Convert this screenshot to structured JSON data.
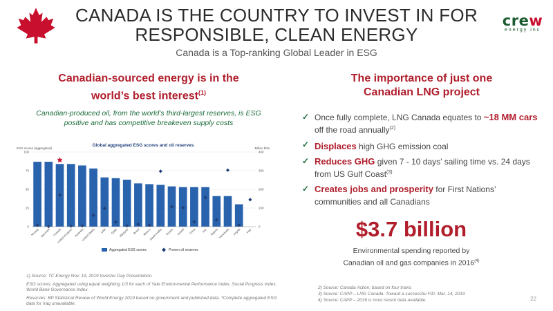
{
  "title_line1": "CANADA IS THE COUNTRY TO INVEST IN FOR",
  "title_line2": "RESPONSIBLE, CLEAN ENERGY",
  "subtitle": "Canada is a Top-ranking Global Leader in ESG",
  "logo": {
    "main_prefix": "cre",
    "main_w": "w",
    "sub": "energy inc",
    "accent_color": "#c8102e",
    "brand_color": "#1c5a2f"
  },
  "left": {
    "heading_line1": "Canadian-sourced energy is in the",
    "heading_line2": "world’s best interest",
    "heading_ref": "(1)",
    "description": "Canadian-produced oil, from the world’s third-largest reserves, is ESG positive and has competitive breakeven supply costs"
  },
  "chart_data": {
    "type": "bar",
    "title": "Global aggregated ESG scores and oil reserves",
    "ylabel_left": "ESG scores (aggregated)",
    "ylabel_right": "Billion bbls",
    "ylim_left": [
      0,
      100
    ],
    "ylim_right": [
      0,
      400
    ],
    "yticks_left": [
      "0",
      "25",
      "50",
      "75",
      "100"
    ],
    "yticks_right": [
      "0",
      "100",
      "200",
      "300",
      "400"
    ],
    "categories": [
      "Norway",
      "Denmark",
      "Canada",
      "United Kingdom",
      "Australia",
      "United States",
      "UAE",
      "Qatar",
      "Malaysia",
      "Brazil",
      "Mexico",
      "Saudi Arabia",
      "Russia",
      "Kuwait",
      "China",
      "Iran",
      "Nigeria",
      "Venezuela",
      "Angola",
      "Iraq*"
    ],
    "series": [
      {
        "name": "Aggregated ESG scores",
        "type": "bar",
        "values": [
          87,
          87,
          84,
          84,
          82,
          78,
          66,
          65,
          63,
          58,
          57,
          56,
          54,
          53,
          53,
          53,
          41,
          41,
          30,
          null
        ]
      },
      {
        "name": "Proven oil reserves",
        "type": "scatter",
        "values": [
          8,
          1,
          170,
          3,
          4,
          61,
          98,
          25,
          4,
          13,
          8,
          297,
          107,
          102,
          26,
          156,
          37,
          303,
          8,
          145
        ]
      }
    ],
    "highlight_category": "Canada",
    "bar_color": "#2a63ad",
    "marker_color": "#1f3f78",
    "legend_position": "bottom"
  },
  "right": {
    "heading_line1": "The importance of just one",
    "heading_line2": "Canadian LNG project",
    "bullets": [
      {
        "pre": "Once fully complete, LNG Canada equates to ",
        "em": "~18 MM cars",
        "post": " off the road annually",
        "ref": "(2)"
      },
      {
        "pre": "",
        "em": "Displaces",
        "post": " high GHG emission coal",
        "ref": ""
      },
      {
        "pre": "",
        "em": "Reduces GHG",
        "post": " given 7 - 10 days’ sailing time vs. 24 days from US Gulf Coast",
        "ref": "(3)"
      },
      {
        "pre": "",
        "em": "Creates jobs and prosperity",
        "post": " for First Nations’ communities and all Canadians",
        "ref": ""
      }
    ],
    "big_number": "$3.7 billion",
    "big_desc_line1": "Environmental spending reported by",
    "big_desc_line2": "Canadian oil and gas companies in 2016",
    "big_desc_ref": "(4)"
  },
  "footnotes_left": [
    "1) Source: TC Energy Nov. 19, 2019 Investor Day Presentation.",
    "ESG scores: Aggregated using equal weighting 1/3 for each of Yale Environmental Performance Index, Social Progress Index, World Bank Governance Index.",
    "Reserves: BP Statistical Review of World Energy 2019 based on government and published data. *Complete aggregated ESG data for Iraq unavailable."
  ],
  "footnotes_right": [
    "2) Source: Canada Action; based on four trains",
    "3) Source: CAPP – LNG Canada: Toward a successful FID. Mar. 14, 2019",
    "4) Source: CAPP – 2016 is most recent data available."
  ],
  "page_number": "22"
}
